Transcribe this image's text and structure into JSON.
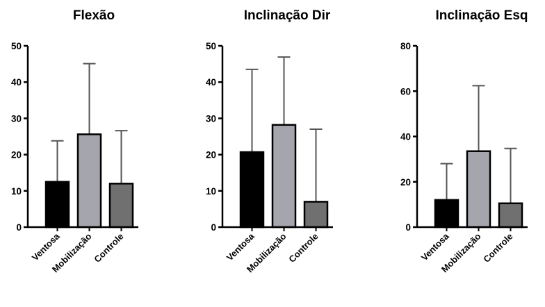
{
  "chart_data": [
    {
      "type": "bar",
      "title": "Flexão",
      "categories": [
        "Ventosa",
        "Mobilização",
        "Controle"
      ],
      "values": [
        12.5,
        25.6,
        12.0
      ],
      "error_upper": [
        23.8,
        45.1,
        26.6
      ],
      "ylim": [
        0,
        50
      ],
      "yticks": [
        0,
        10,
        20,
        30,
        40,
        50
      ],
      "xlabel": "",
      "ylabel": "",
      "colors": [
        "#000000",
        "#a5a5ad",
        "#707070"
      ]
    },
    {
      "type": "bar",
      "title": "Inclinação Dir",
      "categories": [
        "Ventosa",
        "Mobilização",
        "Controle"
      ],
      "values": [
        20.7,
        28.2,
        7.0
      ],
      "error_upper": [
        43.5,
        46.9,
        27.0
      ],
      "ylim": [
        0,
        50
      ],
      "yticks": [
        0,
        10,
        20,
        30,
        40,
        50
      ],
      "xlabel": "",
      "ylabel": "",
      "colors": [
        "#000000",
        "#a5a5ad",
        "#707070"
      ]
    },
    {
      "type": "bar",
      "title": "Inclinação Esq",
      "categories": [
        "Ventosa",
        "Mobilização",
        "Controle"
      ],
      "values": [
        12.0,
        33.5,
        10.5
      ],
      "error_upper": [
        28.0,
        62.4,
        34.7
      ],
      "ylim": [
        0,
        80
      ],
      "yticks": [
        0,
        20,
        40,
        60,
        80
      ],
      "xlabel": "",
      "ylabel": "",
      "colors": [
        "#000000",
        "#a5a5ad",
        "#707070"
      ]
    }
  ]
}
